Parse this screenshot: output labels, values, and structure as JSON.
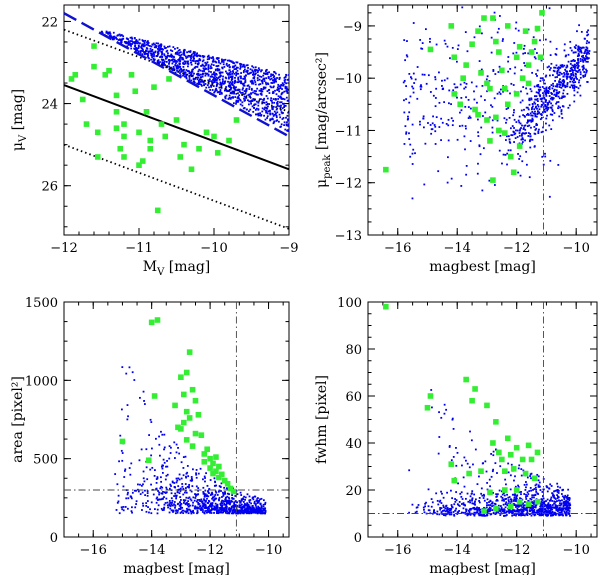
{
  "chart_data": [
    {
      "type": "scatter",
      "xlabel": "M_V [mag]",
      "ylabel": "μ_V [mag]",
      "xlim": [
        -12,
        -9
      ],
      "ylim": [
        27.2,
        21.6
      ],
      "x_ticks": [
        -12,
        -11,
        -10,
        -9
      ],
      "x_tick_labels": [
        "−12",
        "−11",
        "−10",
        "−9"
      ],
      "y_ticks": [
        22,
        24,
        26
      ],
      "y_tick_labels": [
        "22",
        "24",
        "26"
      ],
      "lines": [
        {
          "style": "solid",
          "points": [
            [
              -12,
              23.55
            ],
            [
              -9,
              25.6
            ]
          ]
        },
        {
          "style": "dotted",
          "points": [
            [
              -12,
              22.2
            ],
            [
              -9,
              24.2
            ]
          ]
        },
        {
          "style": "dotted",
          "points": [
            [
              -12,
              25.0
            ],
            [
              -9,
              27.05
            ]
          ]
        },
        {
          "style": "dashed",
          "points": [
            [
              -12,
              21.8
            ],
            [
              -9,
              24.8
            ]
          ]
        }
      ],
      "blue_band": {
        "color": "#0000ee",
        "count": 1300,
        "x_range": [
          -11.5,
          -9
        ],
        "upper_line": [
          [
            -11.5,
            22.2
          ],
          [
            -9,
            23.3
          ]
        ],
        "lower_line": [
          [
            -11.5,
            22.3
          ],
          [
            -9,
            24.7
          ]
        ]
      },
      "green_series": {
        "color": "#33ee33",
        "points": [
          [
            -11.9,
            23.4
          ],
          [
            -11.85,
            23.3
          ],
          [
            -11.75,
            23.9
          ],
          [
            -11.7,
            24.5
          ],
          [
            -11.6,
            22.6
          ],
          [
            -11.6,
            23.1
          ],
          [
            -11.55,
            24.7
          ],
          [
            -11.45,
            23.3
          ],
          [
            -11.4,
            23.2
          ],
          [
            -11.3,
            23.8
          ],
          [
            -11.3,
            24.2
          ],
          [
            -11.3,
            24.6
          ],
          [
            -11.25,
            25.1
          ],
          [
            -11.2,
            24.5
          ],
          [
            -11.2,
            24.8
          ],
          [
            -11.2,
            25.3
          ],
          [
            -11.1,
            23.3
          ],
          [
            -11.05,
            23.7
          ],
          [
            -11.0,
            24.7
          ],
          [
            -10.95,
            25.4
          ],
          [
            -10.9,
            24.2
          ],
          [
            -10.85,
            24.9
          ],
          [
            -10.8,
            23.6
          ],
          [
            -10.75,
            26.6
          ],
          [
            -10.7,
            24.5
          ],
          [
            -10.65,
            24.8
          ],
          [
            -10.6,
            23.4
          ],
          [
            -10.5,
            24.4
          ],
          [
            -10.45,
            25.3
          ],
          [
            -10.4,
            25.0
          ],
          [
            -10.3,
            25.6
          ],
          [
            -10.2,
            25.1
          ],
          [
            -10.1,
            24.7
          ],
          [
            -10.0,
            24.8
          ],
          [
            -9.95,
            25.2
          ],
          [
            -9.8,
            24.9
          ],
          [
            -9.7,
            24.4
          ],
          [
            -11.55,
            25.3
          ],
          [
            -11.0,
            25.5
          ],
          [
            -10.85,
            25.1
          ]
        ]
      }
    },
    {
      "type": "scatter",
      "xlabel": "magbest [mag]",
      "ylabel": "μ_peak [mag/arcsec²]",
      "xlim": [
        -17,
        -9.3
      ],
      "ylim": [
        -13,
        -8.6
      ],
      "x_ticks": [
        -16,
        -14,
        -12,
        -10
      ],
      "x_tick_labels": [
        "−16",
        "−14",
        "−12",
        "−10"
      ],
      "y_ticks": [
        -13,
        -12,
        -11,
        -10,
        -9
      ],
      "y_tick_labels": [
        "−13",
        "−12",
        "−11",
        "−10",
        "−9"
      ],
      "reference_lines": [
        {
          "orientation": "vertical",
          "value": -11.1,
          "style": "dashdot"
        }
      ],
      "blue_series": {
        "color": "#0000ee",
        "count": 900
      },
      "green_series": {
        "color": "#33ee33",
        "points": [
          [
            -16.4,
            -11.75
          ],
          [
            -14.9,
            -9.45
          ],
          [
            -14.2,
            -9.0
          ],
          [
            -14.1,
            -9.6
          ],
          [
            -14.1,
            -10.3
          ],
          [
            -13.9,
            -10.5
          ],
          [
            -13.8,
            -10.0
          ],
          [
            -13.7,
            -9.75
          ],
          [
            -13.5,
            -9.35
          ],
          [
            -13.4,
            -10.6
          ],
          [
            -13.3,
            -9.1
          ],
          [
            -13.2,
            -9.9
          ],
          [
            -13.1,
            -8.85
          ],
          [
            -13.0,
            -10.1
          ],
          [
            -13.0,
            -10.8
          ],
          [
            -12.9,
            -11.2
          ],
          [
            -12.8,
            -8.85
          ],
          [
            -12.8,
            -11.95
          ],
          [
            -12.7,
            -9.3
          ],
          [
            -12.7,
            -10.75
          ],
          [
            -12.6,
            -9.5
          ],
          [
            -12.6,
            -11.0
          ],
          [
            -12.5,
            -9.85
          ],
          [
            -12.4,
            -10.2
          ],
          [
            -12.4,
            -11.05
          ],
          [
            -12.3,
            -9.0
          ],
          [
            -12.3,
            -10.5
          ],
          [
            -12.2,
            -11.5
          ],
          [
            -12.1,
            -11.8
          ],
          [
            -12.0,
            -9.6
          ],
          [
            -12.0,
            -10.3
          ],
          [
            -11.9,
            -9.4
          ],
          [
            -11.8,
            -10.0
          ],
          [
            -11.7,
            -9.1
          ],
          [
            -11.6,
            -10.1
          ],
          [
            -11.5,
            -9.5
          ],
          [
            -11.4,
            -9.3
          ],
          [
            -11.3,
            -9.05
          ],
          [
            -11.2,
            -9.6
          ],
          [
            -11.15,
            -8.75
          ],
          [
            -11.9,
            -11.3
          ],
          [
            -13.3,
            -10.7
          ],
          [
            -12.9,
            -10.2
          ],
          [
            -11.6,
            -9.75
          ]
        ]
      }
    },
    {
      "type": "scatter",
      "xlabel": "magbest [mag]",
      "ylabel": "area [pixel²]",
      "xlim": [
        -17,
        -9.3
      ],
      "ylim": [
        0,
        1500
      ],
      "x_ticks": [
        -16,
        -14,
        -12,
        -10
      ],
      "x_tick_labels": [
        "−16",
        "−14",
        "−12",
        "−10"
      ],
      "y_ticks": [
        0,
        500,
        1000,
        1500
      ],
      "y_tick_labels": [
        "0",
        "500",
        "1000",
        "1500"
      ],
      "reference_lines": [
        {
          "orientation": "vertical",
          "value": -11.1,
          "style": "dashdot"
        },
        {
          "orientation": "horizontal",
          "value": 300,
          "style": "dashdot"
        }
      ],
      "blue_series": {
        "color": "#0000ee",
        "count": 1000
      },
      "green_series": {
        "color": "#33ee33",
        "points": [
          [
            -15.0,
            610
          ],
          [
            -14.1,
            490
          ],
          [
            -14.0,
            1370
          ],
          [
            -13.8,
            1385
          ],
          [
            -13.2,
            840
          ],
          [
            -13.1,
            700
          ],
          [
            -13.0,
            1020
          ],
          [
            -13.0,
            690
          ],
          [
            -12.9,
            910
          ],
          [
            -12.8,
            1050
          ],
          [
            -12.8,
            800
          ],
          [
            -12.8,
            620
          ],
          [
            -12.7,
            1180
          ],
          [
            -12.7,
            760
          ],
          [
            -12.6,
            940
          ],
          [
            -12.6,
            580
          ],
          [
            -12.5,
            870
          ],
          [
            -12.5,
            660
          ],
          [
            -12.4,
            780
          ],
          [
            -12.3,
            650
          ],
          [
            -12.2,
            530
          ],
          [
            -12.2,
            480
          ],
          [
            -12.1,
            560
          ],
          [
            -12.0,
            500
          ],
          [
            -12.0,
            440
          ],
          [
            -11.9,
            470
          ],
          [
            -11.8,
            510
          ],
          [
            -11.8,
            420
          ],
          [
            -11.7,
            450
          ],
          [
            -11.7,
            380
          ],
          [
            -11.6,
            400
          ],
          [
            -11.5,
            360
          ],
          [
            -11.4,
            340
          ],
          [
            -11.3,
            310
          ],
          [
            -11.2,
            290
          ],
          [
            -13.9,
            900
          ],
          [
            -12.9,
            730
          ],
          [
            -11.9,
            405
          ]
        ]
      }
    },
    {
      "type": "scatter",
      "xlabel": "magbest [mag]",
      "ylabel": "fwhm [pixel]",
      "xlim": [
        -17,
        -9.3
      ],
      "ylim": [
        0,
        100
      ],
      "x_ticks": [
        -16,
        -14,
        -12,
        -10
      ],
      "x_tick_labels": [
        "−16",
        "−14",
        "−12",
        "−10"
      ],
      "y_ticks": [
        0,
        20,
        40,
        60,
        80,
        100
      ],
      "y_tick_labels": [
        "0",
        "20",
        "40",
        "60",
        "80",
        "100"
      ],
      "reference_lines": [
        {
          "orientation": "vertical",
          "value": -11.1,
          "style": "dashdot"
        },
        {
          "orientation": "horizontal",
          "value": 10,
          "style": "dashdot"
        }
      ],
      "blue_series": {
        "color": "#0000ee",
        "count": 1000
      },
      "green_series": {
        "color": "#33ee33",
        "points": [
          [
            -16.4,
            98
          ],
          [
            -15.0,
            55
          ],
          [
            -14.9,
            60
          ],
          [
            -14.2,
            31
          ],
          [
            -14.1,
            24
          ],
          [
            -13.7,
            67
          ],
          [
            -13.6,
            27
          ],
          [
            -13.5,
            58
          ],
          [
            -13.4,
            63
          ],
          [
            -13.2,
            28
          ],
          [
            -13.0,
            56
          ],
          [
            -12.9,
            19
          ],
          [
            -12.8,
            40
          ],
          [
            -12.7,
            49
          ],
          [
            -12.6,
            36
          ],
          [
            -12.5,
            33
          ],
          [
            -12.4,
            28
          ],
          [
            -12.4,
            20
          ],
          [
            -12.3,
            42
          ],
          [
            -12.2,
            35
          ],
          [
            -12.1,
            29
          ],
          [
            -12.0,
            38
          ],
          [
            -12.0,
            20
          ],
          [
            -11.9,
            15
          ],
          [
            -11.8,
            33
          ],
          [
            -11.7,
            27
          ],
          [
            -11.6,
            39
          ],
          [
            -11.5,
            33
          ],
          [
            -11.4,
            25
          ],
          [
            -11.3,
            36
          ],
          [
            -11.3,
            15
          ],
          [
            -12.7,
            12
          ],
          [
            -13.1,
            11
          ],
          [
            -12.2,
            13
          ],
          [
            -11.6,
            14
          ]
        ]
      }
    }
  ]
}
